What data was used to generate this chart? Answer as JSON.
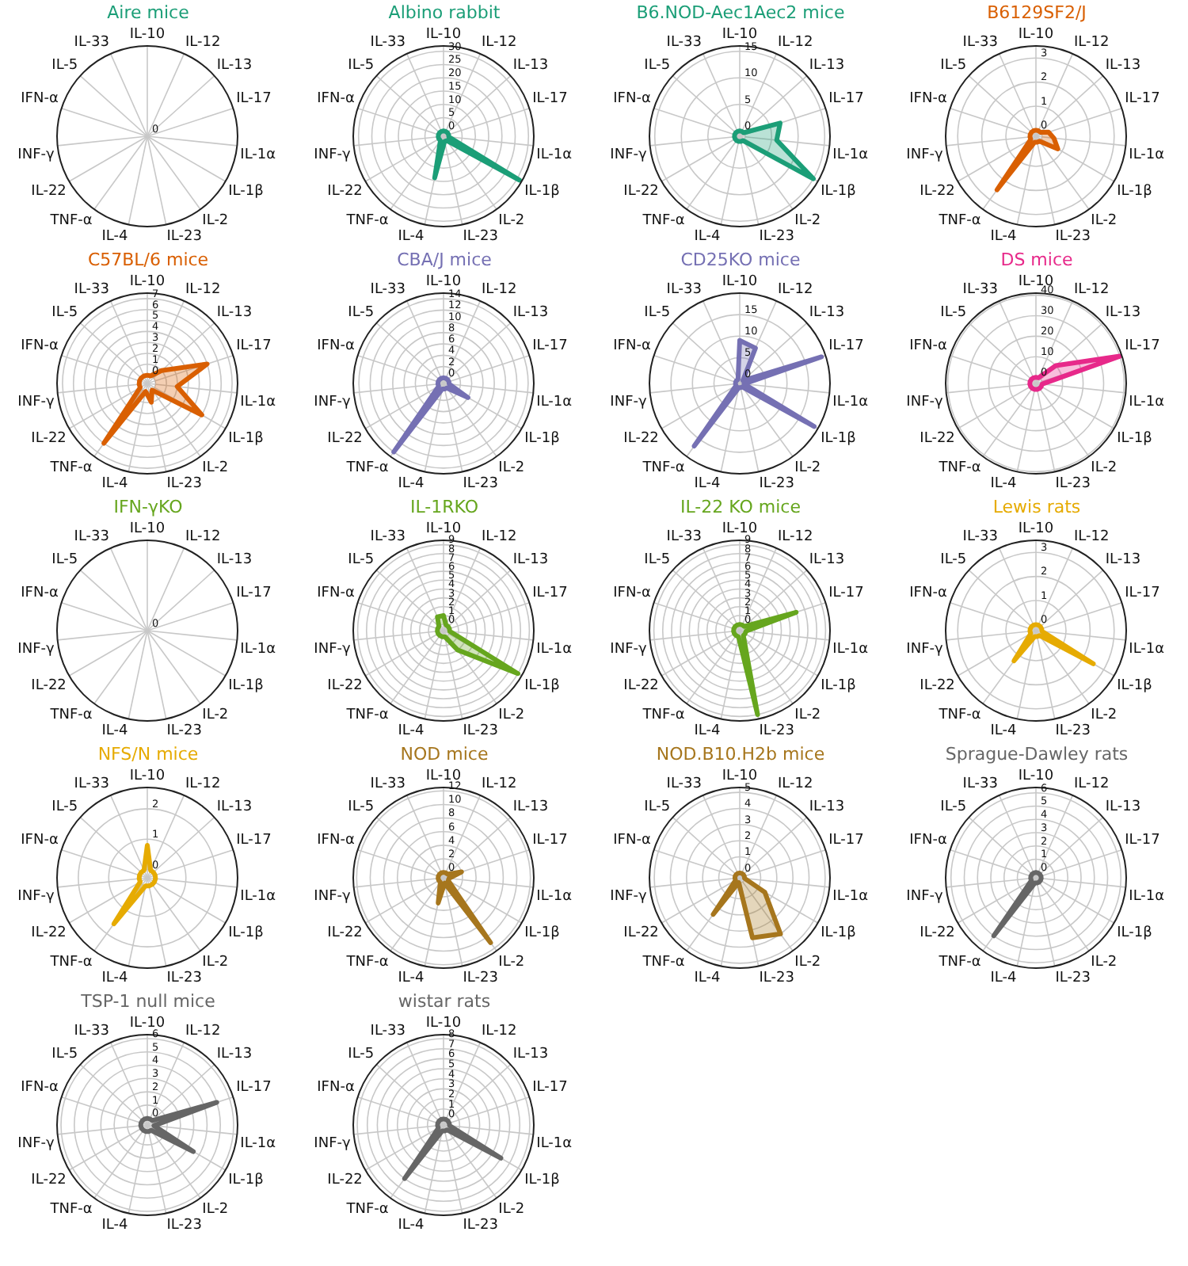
{
  "chart_data": [
    {
      "type": "other",
      "title": "Aire mice",
      "categories": [
        "IL-10",
        "IL-12",
        "IL-13",
        "IL-17",
        "IL-1α",
        "IL-1β",
        "IL-2",
        "IL-23",
        "IL-4",
        "TNF-α",
        "IL-22",
        "INF-γ",
        "IFN-α",
        "IL-5",
        "IL-33"
      ],
      "annotations": [
        "0"
      ]
    },
    {
      "type": "radar",
      "title": "Albino rabbit",
      "categories": [
        "IL-10",
        "IL-12",
        "IL-13",
        "IL-17",
        "IL-1α",
        "IL-1β",
        "IL-2",
        "IL-23",
        "IL-4",
        "TNF-α",
        "IL-22",
        "INF-γ",
        "IFN-α",
        "IL-5",
        "IL-33"
      ],
      "series": [
        {
          "color": "#1b9e77",
          "values": [
            0,
            0,
            0,
            0,
            0,
            31,
            0,
            0,
            14,
            0,
            0,
            0,
            0,
            0,
            0
          ]
        }
      ],
      "ylim": [
        -2,
        32
      ],
      "yticks": [
        0,
        5,
        10,
        15,
        20,
        25,
        30
      ],
      "grid": true,
      "marker": "none"
    },
    {
      "type": "radar",
      "title": "B6.NOD-Aec1Aec2 mice",
      "categories": [
        "IL-10",
        "IL-12",
        "IL-13",
        "IL-17",
        "IL-1α",
        "IL-1β",
        "IL-2",
        "IL-23",
        "IL-4",
        "TNF-α",
        "IL-22",
        "INF-γ",
        "IFN-α",
        "IL-5",
        "IL-33"
      ],
      "series": [
        {
          "color": "#1b9e77",
          "values": [
            0,
            0,
            0,
            7,
            6,
            15,
            0,
            0,
            0,
            0,
            0,
            0,
            0,
            0,
            0
          ]
        }
      ],
      "ylim": [
        -1,
        16
      ],
      "yticks": [
        0,
        5,
        10,
        15
      ],
      "grid": true,
      "marker": "none"
    },
    {
      "type": "radar",
      "title": "B6129SF2/J",
      "categories": [
        "IL-10",
        "IL-12",
        "IL-13",
        "IL-17",
        "IL-1α",
        "IL-1β",
        "IL-2",
        "IL-23",
        "IL-4",
        "TNF-α",
        "IL-22",
        "INF-γ",
        "IFN-α",
        "IL-5",
        "IL-33"
      ],
      "series": [
        {
          "color": "#d95f02",
          "values": [
            0,
            0,
            0,
            0.3,
            0.5,
            0.8,
            0,
            0,
            0,
            2.5,
            0,
            0,
            0,
            0,
            0
          ]
        }
      ],
      "ylim": [
        -0.25,
        3.5
      ],
      "yticks": [
        0,
        1,
        2,
        3
      ],
      "grid": true,
      "marker": "none"
    },
    {
      "type": "radar",
      "title": "C57BL/6 mice",
      "categories": [
        "IL-10",
        "IL-12",
        "IL-13",
        "IL-17",
        "IL-1α",
        "IL-1β",
        "IL-2",
        "IL-23",
        "IL-4",
        "TNF-α",
        "IL-22",
        "INF-γ",
        "IFN-α",
        "IL-5",
        "IL-33"
      ],
      "series": [
        {
          "color": "#d95f02",
          "values": [
            0,
            0,
            1,
            5,
            2,
            5,
            0,
            1,
            0,
            6,
            0,
            0,
            0,
            0,
            0
          ]
        }
      ],
      "ylim": [
        -0.75,
        7.5
      ],
      "yticks": [
        0,
        1,
        2,
        3,
        4,
        5,
        6,
        7
      ],
      "grid": true,
      "marker": "none"
    },
    {
      "type": "radar",
      "title": "CBA/J mice",
      "categories": [
        "IL-10",
        "IL-12",
        "IL-13",
        "IL-17",
        "IL-1α",
        "IL-1β",
        "IL-2",
        "IL-23",
        "IL-4",
        "TNF-α",
        "IL-22",
        "INF-γ",
        "IFN-α",
        "IL-5",
        "IL-33"
      ],
      "series": [
        {
          "color": "#7570b3",
          "values": [
            0,
            0,
            0,
            0,
            0,
            4,
            0,
            0,
            0,
            14,
            0,
            0,
            0,
            0,
            0
          ]
        }
      ],
      "ylim": [
        -1,
        15
      ],
      "yticks": [
        0,
        2,
        4,
        6,
        8,
        10,
        12,
        14
      ],
      "grid": true,
      "marker": "none"
    },
    {
      "type": "radar",
      "title": "CD25KO mice",
      "categories": [
        "IL-10",
        "IL-12",
        "IL-13",
        "IL-17",
        "IL-1α",
        "IL-1β",
        "IL-2",
        "IL-23",
        "IL-4",
        "TNF-α",
        "IL-22",
        "INF-γ",
        "IFN-α",
        "IL-5",
        "IL-33"
      ],
      "series": [
        {
          "color": "#7570b3",
          "values": [
            9,
            8,
            0,
            19,
            0,
            19,
            0,
            0,
            0,
            17,
            0,
            0,
            0,
            0,
            0
          ]
        }
      ],
      "ylim": [
        -1,
        20
      ],
      "yticks": [
        0,
        5,
        10,
        15
      ],
      "grid": true,
      "marker": "none"
    },
    {
      "type": "radar",
      "title": "DS mice",
      "categories": [
        "IL-10",
        "IL-12",
        "IL-13",
        "IL-17",
        "IL-1α",
        "IL-1β",
        "IL-2",
        "IL-23",
        "IL-4",
        "TNF-α",
        "IL-22",
        "INF-γ",
        "IFN-α",
        "IL-5",
        "IL-33"
      ],
      "series": [
        {
          "color": "#e7298a",
          "values": [
            0,
            0,
            10,
            40,
            0,
            0,
            0,
            0,
            0,
            0,
            0,
            0,
            0,
            0,
            0
          ]
        }
      ],
      "ylim": [
        -3,
        41
      ],
      "yticks": [
        0,
        10,
        20,
        30,
        40
      ],
      "grid": true,
      "marker": "none"
    },
    {
      "type": "other",
      "title": "IFN-γKO",
      "categories": [
        "IL-10",
        "IL-12",
        "IL-13",
        "IL-17",
        "IL-1α",
        "IL-1β",
        "IL-2",
        "IL-23",
        "IL-4",
        "TNF-α",
        "IL-22",
        "INF-γ",
        "IFN-α",
        "IL-5",
        "IL-33"
      ],
      "annotations": [
        "0"
      ]
    },
    {
      "type": "radar",
      "title": "IL-1RKO",
      "categories": [
        "IL-10",
        "IL-12",
        "IL-13",
        "IL-17",
        "IL-1α",
        "IL-1β",
        "IL-2",
        "IL-23",
        "IL-4",
        "TNF-α",
        "IL-22",
        "INF-γ",
        "IFN-α",
        "IL-5",
        "IL-33"
      ],
      "series": [
        {
          "color": "#66a61e",
          "values": [
            1,
            0,
            0,
            0,
            0,
            9,
            2,
            0,
            0,
            0,
            0,
            0,
            0,
            0,
            1
          ]
        }
      ],
      "ylim": [
        -0.7,
        9.5
      ],
      "yticks": [
        0,
        1,
        2,
        3,
        4,
        5,
        6,
        7,
        8,
        9
      ],
      "grid": true,
      "marker": "none"
    },
    {
      "type": "radar",
      "title": "IL-22 KO mice",
      "categories": [
        "IL-10",
        "IL-12",
        "IL-13",
        "IL-17",
        "IL-1α",
        "IL-1β",
        "IL-2",
        "IL-23",
        "IL-4",
        "TNF-α",
        "IL-22",
        "INF-γ",
        "IFN-α",
        "IL-5",
        "IL-33"
      ],
      "series": [
        {
          "color": "#66a61e",
          "values": [
            0,
            0,
            0,
            6,
            0,
            0,
            0,
            9,
            0,
            0,
            0,
            0,
            0,
            0,
            0
          ]
        }
      ],
      "ylim": [
        -0.7,
        9.5
      ],
      "yticks": [
        0,
        1,
        2,
        3,
        4,
        5,
        6,
        7,
        8,
        9
      ],
      "grid": true,
      "marker": "none"
    },
    {
      "type": "radar",
      "title": "Lewis rats",
      "categories": [
        "IL-10",
        "IL-12",
        "IL-13",
        "IL-17",
        "IL-1α",
        "IL-1β",
        "IL-2",
        "IL-23",
        "IL-4",
        "TNF-α",
        "IL-22",
        "INF-γ",
        "IFN-α",
        "IL-5",
        "IL-33"
      ],
      "series": [
        {
          "color": "#e6ab02",
          "values": [
            0,
            0,
            0,
            0,
            0,
            2.5,
            0,
            0,
            0,
            1.3,
            0,
            0,
            0,
            0,
            0
          ]
        }
      ],
      "ylim": [
        -0.25,
        3.5
      ],
      "yticks": [
        0,
        1,
        2,
        3
      ],
      "grid": true,
      "marker": "none"
    },
    {
      "type": "radar",
      "title": "NFS/N mice",
      "categories": [
        "IL-10",
        "IL-12",
        "IL-13",
        "IL-17",
        "IL-1α",
        "IL-1β",
        "IL-2",
        "IL-23",
        "IL-4",
        "TNF-α",
        "IL-22",
        "INF-γ",
        "IFN-α",
        "IL-5",
        "IL-33"
      ],
      "series": [
        {
          "color": "#e6ab02",
          "values": [
            0.8,
            0,
            0,
            0,
            0,
            0,
            0,
            0,
            0,
            1.6,
            0,
            0,
            0,
            0,
            0
          ]
        }
      ],
      "ylim": [
        -0.27,
        2.7
      ],
      "yticks": [
        0,
        1,
        2
      ],
      "grid": true,
      "marker": "none"
    },
    {
      "type": "radar",
      "title": "NOD mice",
      "categories": [
        "IL-10",
        "IL-12",
        "IL-13",
        "IL-17",
        "IL-1α",
        "IL-1β",
        "IL-2",
        "IL-23",
        "IL-4",
        "TNF-α",
        "IL-22",
        "INF-γ",
        "IFN-α",
        "IL-5",
        "IL-33"
      ],
      "series": [
        {
          "color": "#a6761d",
          "values": [
            0,
            0,
            0,
            2,
            0,
            0,
            11,
            0,
            3,
            0,
            0,
            0,
            0,
            0,
            0
          ]
        }
      ],
      "ylim": [
        -0.8,
        12.5
      ],
      "yticks": [
        0,
        2,
        4,
        6,
        8,
        10,
        12
      ],
      "grid": true,
      "marker": "none"
    },
    {
      "type": "radar",
      "title": "NOD.B10.H2b mice",
      "categories": [
        "IL-10",
        "IL-12",
        "IL-13",
        "IL-17",
        "IL-1α",
        "IL-1β",
        "IL-2",
        "IL-23",
        "IL-4",
        "TNF-α",
        "IL-22",
        "INF-γ",
        "IFN-α",
        "IL-5",
        "IL-33"
      ],
      "series": [
        {
          "color": "#a6761d",
          "values": [
            0,
            0,
            0,
            0,
            0,
            1.5,
            4,
            3.5,
            0,
            2.5,
            0,
            0,
            0,
            0,
            0
          ]
        }
      ],
      "ylim": [
        -0.3,
        5.3
      ],
      "yticks": [
        0,
        1,
        2,
        3,
        4,
        5
      ],
      "grid": true,
      "marker": "none"
    },
    {
      "type": "radar",
      "title": "Sprague-Dawley rats",
      "categories": [
        "IL-10",
        "IL-12",
        "IL-13",
        "IL-17",
        "IL-1α",
        "IL-1β",
        "IL-2",
        "IL-23",
        "IL-4",
        "TNF-α",
        "IL-22",
        "INF-γ",
        "IFN-α",
        "IL-5",
        "IL-33"
      ],
      "series": [
        {
          "color": "#666666",
          "values": [
            0,
            0,
            0,
            0,
            0,
            0,
            0,
            0,
            0,
            5,
            0,
            0,
            0,
            0,
            0
          ]
        }
      ],
      "ylim": [
        -0.4,
        6.4
      ],
      "yticks": [
        0,
        1,
        2,
        3,
        4,
        5,
        6
      ],
      "grid": true,
      "marker": "none"
    },
    {
      "type": "radar",
      "title": "TSP-1 null mice",
      "categories": [
        "IL-10",
        "IL-12",
        "IL-13",
        "IL-17",
        "IL-1α",
        "IL-1β",
        "IL-2",
        "IL-23",
        "IL-4",
        "TNF-α",
        "IL-22",
        "INF-γ",
        "IFN-α",
        "IL-5",
        "IL-33"
      ],
      "series": [
        {
          "color": "#666666",
          "values": [
            0,
            0,
            0,
            5,
            0,
            3.5,
            0,
            0,
            0,
            0,
            0,
            0,
            0,
            0,
            0
          ]
        }
      ],
      "ylim": [
        -0.5,
        6.3
      ],
      "yticks": [
        0,
        1,
        2,
        3,
        4,
        5,
        6
      ],
      "grid": true,
      "marker": "none"
    },
    {
      "type": "radar",
      "title": "wistar rats",
      "categories": [
        "IL-10",
        "IL-12",
        "IL-13",
        "IL-17",
        "IL-1α",
        "IL-1β",
        "IL-2",
        "IL-23",
        "IL-4",
        "TNF-α",
        "IL-22",
        "INF-γ",
        "IFN-α",
        "IL-5",
        "IL-33"
      ],
      "series": [
        {
          "color": "#666666",
          "values": [
            0,
            0,
            0,
            0,
            0,
            6,
            0,
            0,
            0,
            6,
            0,
            0,
            0,
            0,
            0
          ]
        }
      ],
      "ylim": [
        -0.6,
        8.4
      ],
      "yticks": [
        0,
        1,
        2,
        3,
        4,
        5,
        6,
        7,
        8
      ],
      "grid": true,
      "marker": "none"
    }
  ]
}
